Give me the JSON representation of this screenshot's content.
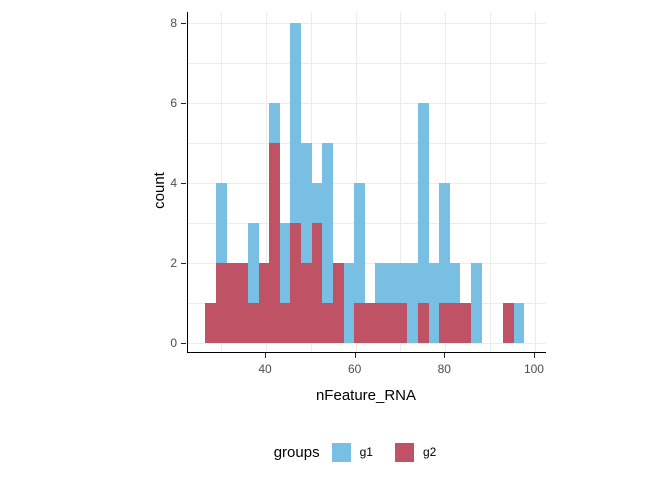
{
  "chart_data": {
    "type": "bar",
    "subtype": "stacked-histogram",
    "title": "",
    "xlabel": "nFeature_RNA",
    "ylabel": "count",
    "x_ticks": [
      40,
      60,
      80,
      100
    ],
    "y_ticks": [
      0,
      2,
      4,
      6,
      8
    ],
    "x_gridlines": [
      30,
      40,
      50,
      60,
      70,
      80,
      90,
      100
    ],
    "y_gridlines": [
      0,
      1,
      2,
      3,
      4,
      5,
      6,
      7,
      8
    ],
    "x_range": [
      22.6,
      102.5
    ],
    "y_range": [
      0,
      8.5
    ],
    "grid": true,
    "bin_width": 2.37,
    "legend": {
      "title": "groups",
      "position": "bottom",
      "entries": [
        {
          "label": "g1",
          "color": "#79BEE3"
        },
        {
          "label": "g2",
          "color": "#C05266"
        }
      ]
    },
    "stack_order": "g2 on bottom, g1 on top",
    "bars": [
      {
        "x": 26.5,
        "g2": 1,
        "g1": 0
      },
      {
        "x": 28.87,
        "g2": 2,
        "g1": 2
      },
      {
        "x": 31.24,
        "g2": 2,
        "g1": 0
      },
      {
        "x": 33.61,
        "g2": 2,
        "g1": 0
      },
      {
        "x": 35.98,
        "g2": 1,
        "g1": 2
      },
      {
        "x": 38.35,
        "g2": 2,
        "g1": 0
      },
      {
        "x": 40.72,
        "g2": 5,
        "g1": 1
      },
      {
        "x": 43.09,
        "g2": 1,
        "g1": 2
      },
      {
        "x": 45.46,
        "g2": 3,
        "g1": 5
      },
      {
        "x": 47.83,
        "g2": 2,
        "g1": 3
      },
      {
        "x": 50.2,
        "g2": 3,
        "g1": 1
      },
      {
        "x": 52.57,
        "g2": 1,
        "g1": 4
      },
      {
        "x": 54.94,
        "g2": 2,
        "g1": 0
      },
      {
        "x": 57.31,
        "g2": 0,
        "g1": 2
      },
      {
        "x": 59.68,
        "g2": 1,
        "g1": 3
      },
      {
        "x": 62.05,
        "g2": 1,
        "g1": 0
      },
      {
        "x": 64.42,
        "g2": 1,
        "g1": 1
      },
      {
        "x": 66.79,
        "g2": 1,
        "g1": 1
      },
      {
        "x": 69.16,
        "g2": 1,
        "g1": 1
      },
      {
        "x": 71.53,
        "g2": 0,
        "g1": 2
      },
      {
        "x": 73.9,
        "g2": 1,
        "g1": 5
      },
      {
        "x": 76.27,
        "g2": 0,
        "g1": 2
      },
      {
        "x": 78.64,
        "g2": 1,
        "g1": 3
      },
      {
        "x": 81.01,
        "g2": 1,
        "g1": 1
      },
      {
        "x": 83.38,
        "g2": 1,
        "g1": 0
      },
      {
        "x": 85.75,
        "g2": 0,
        "g1": 2
      },
      {
        "x": 88.12,
        "g2": 0,
        "g1": 0
      },
      {
        "x": 90.49,
        "g2": 0,
        "g1": 0
      },
      {
        "x": 92.86,
        "g2": 1,
        "g1": 0
      },
      {
        "x": 95.23,
        "g2": 0,
        "g1": 1
      }
    ]
  },
  "colors": {
    "g1_blue": "#79BEE3",
    "g2_red": "#C05266",
    "gridline": "#ececec",
    "axis_line": "#000000",
    "tick_text": "#4d4d4d",
    "background": "#ffffff"
  }
}
